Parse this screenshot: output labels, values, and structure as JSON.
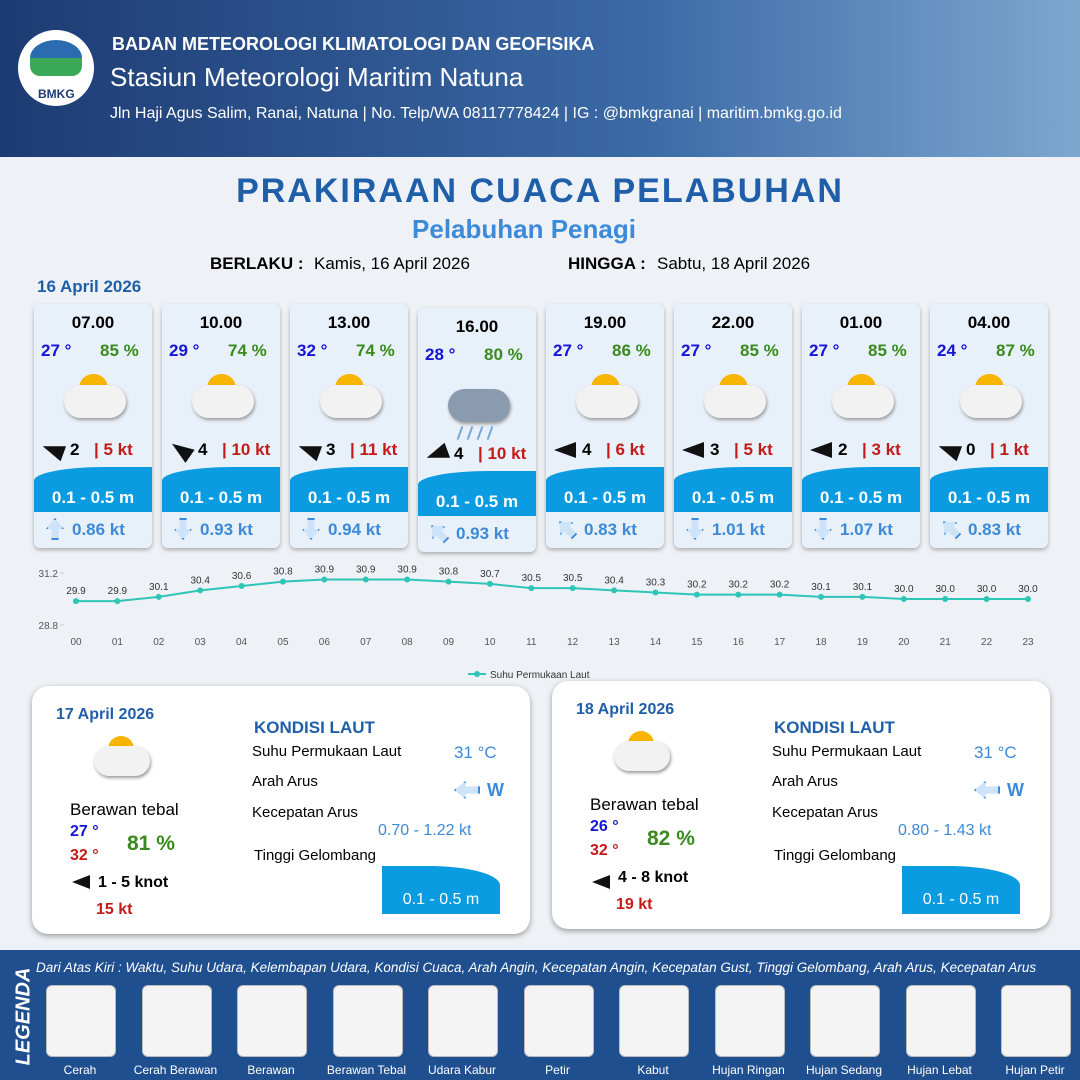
{
  "header": {
    "logo": "BMKG",
    "organization": "BADAN METEOROLOGI KLIMATOLOGI DAN GEOFISIKA",
    "station": "Stasiun Meteorologi Maritim Natuna",
    "address": "Jln Haji Agus Salim, Ranai, Natuna  | No. Telp/WA 08117778424 | IG : @bmkgranai | maritim.bmkg.go.id"
  },
  "title": "PRAKIRAAN CUACA PELABUHAN",
  "subtitle": "Pelabuhan Penagi",
  "validity": {
    "from_label": "BERLAKU :",
    "from": "Kamis, 16 April 2026",
    "to_label": "HINGGA :",
    "to": "Sabtu, 18 April 2026"
  },
  "day1": {
    "date": "16 April 2026",
    "cards": [
      {
        "time": "07.00",
        "temp": "27 °",
        "humidity": "85 %",
        "wind": "2",
        "gust": "| 5 kt",
        "wave": "0.1 - 0.5 m",
        "current": "0.86 kt"
      },
      {
        "time": "10.00",
        "temp": "29 °",
        "humidity": "74 %",
        "wind": "4",
        "gust": "| 10 kt",
        "wave": "0.1 - 0.5 m",
        "current": "0.93 kt"
      },
      {
        "time": "13.00",
        "temp": "32 °",
        "humidity": "74 %",
        "wind": "3",
        "gust": "| 11 kt",
        "wave": "0.1 - 0.5 m",
        "current": "0.94 kt"
      },
      {
        "time": "16.00",
        "temp": "28 °",
        "humidity": "80 %",
        "wind": "4",
        "gust": "| 10 kt",
        "wave": "0.1 - 0.5 m",
        "current": "0.93 kt"
      },
      {
        "time": "19.00",
        "temp": "27 °",
        "humidity": "86 %",
        "wind": "4",
        "gust": "| 6 kt",
        "wave": "0.1 - 0.5 m",
        "current": "0.83 kt"
      },
      {
        "time": "22.00",
        "temp": "27 °",
        "humidity": "85 %",
        "wind": "3",
        "gust": "| 5 kt",
        "wave": "0.1 - 0.5 m",
        "current": "1.01 kt"
      },
      {
        "time": "01.00",
        "temp": "27 °",
        "humidity": "85 %",
        "wind": "2",
        "gust": "| 3 kt",
        "wave": "0.1 - 0.5 m",
        "current": "1.07 kt"
      },
      {
        "time": "04.00",
        "temp": "24 °",
        "humidity": "87 %",
        "wind": "0",
        "gust": "| 1 kt",
        "wave": "0.1 - 0.5 m",
        "current": "0.83 kt"
      }
    ]
  },
  "sst_chart": {
    "type": "line",
    "categories": [
      "00",
      "01",
      "02",
      "03",
      "04",
      "05",
      "06",
      "07",
      "08",
      "09",
      "10",
      "11",
      "12",
      "13",
      "14",
      "15",
      "16",
      "17",
      "18",
      "19",
      "20",
      "21",
      "22",
      "23"
    ],
    "series": [
      {
        "name": "Suhu Permukaan Laut",
        "color": "#2ec4b6",
        "values": [
          29.9,
          29.9,
          30.1,
          30.4,
          30.6,
          30.8,
          30.9,
          30.9,
          30.9,
          30.8,
          30.7,
          30.5,
          30.5,
          30.4,
          30.3,
          30.2,
          30.2,
          30.2,
          30.1,
          30.1,
          30.0,
          30.0,
          30.0,
          30.0
        ],
        "value_labels": [
          "29.9",
          "29.9",
          "30.1",
          "30.4",
          "30.6",
          "30.8",
          "30.9",
          "30.9",
          "30.9",
          "30.8",
          "30.7",
          "30.5",
          "30.5",
          "30.4",
          "30.3",
          "30.2",
          "30.2",
          "30.2",
          "30.1",
          "30.1",
          "30.0",
          "30.0",
          "30.0",
          "30.0"
        ]
      }
    ],
    "ylim": [
      28.8,
      31.2
    ],
    "yticks": [
      28.8,
      31.2
    ]
  },
  "days": [
    {
      "date": "17 April 2026",
      "condition": "Berawan tebal",
      "temp_min": "27 °",
      "temp_max": "32 °",
      "humidity": "81 %",
      "wind": "1 - 5 knot",
      "gust": "15 kt",
      "heading": "KONDISI LAUT",
      "sst_label": "Suhu Permukaan Laut",
      "sst": "31 °C",
      "direction_label": "Arah Arus",
      "direction": "W",
      "speed_label": "Kecepatan Arus",
      "speed": "0.70 - 1.22 kt",
      "wave_label": "Tinggi Gelombang",
      "wave": "0.1 - 0.5 m"
    },
    {
      "date": "18 April 2026",
      "condition": "Berawan tebal",
      "temp_min": "26 °",
      "temp_max": "32 °",
      "humidity": "82 %",
      "wind": "4 - 8 knot",
      "gust": "19 kt",
      "heading": "KONDISI LAUT",
      "sst_label": "Suhu Permukaan Laut",
      "sst": "31 °C",
      "direction_label": "Arah Arus",
      "direction": "W",
      "speed_label": "Kecepatan Arus",
      "speed": "0.80 - 1.43 kt",
      "wave_label": "Tinggi Gelombang",
      "wave": "0.1 - 0.5 m"
    }
  ],
  "legend": {
    "title": "LEGENDA",
    "note": "Dari Atas Kiri : Waktu, Suhu Udara, Kelembapan Udara, Kondisi Cuaca, Arah Angin, Kecepatan Angin, Kecepatan Gust, Tinggi Gelombang, Arah Arus, Kecepatan Arus",
    "items": [
      "Cerah",
      "Cerah Berawan",
      "Berawan",
      "Berawan Tebal",
      "Udara Kabur",
      "Petir",
      "Kabut",
      "Hujan Ringan",
      "Hujan Sedang",
      "Hujan Lebat",
      "Hujan Petir"
    ]
  }
}
